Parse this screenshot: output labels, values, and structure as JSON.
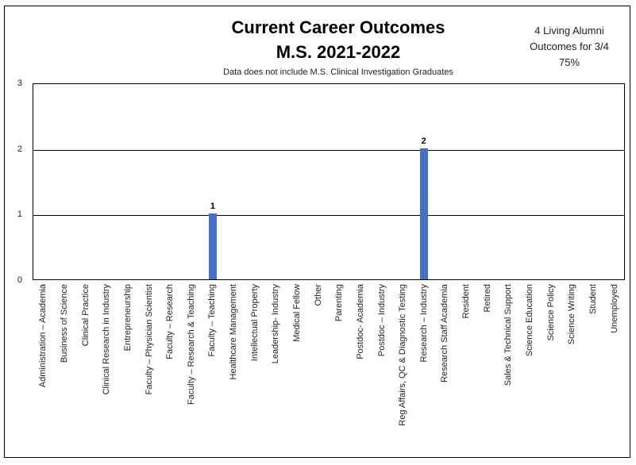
{
  "chart_data": {
    "type": "bar",
    "title_line1": "Current Career Outcomes",
    "title_line2": "M.S. 2021-2022",
    "subtitle": "Data does not include M.S. Clinical Investigation Graduates",
    "annotation_lines": [
      "4 Living Alumni",
      "Outcomes for 3/4",
      "75%"
    ],
    "categories": [
      "Administration – Academia",
      "Business of Science",
      "Clinical Practice",
      "Clinical Research in Industry",
      "Entrepreneurship",
      "Faculty – Physician Scientist",
      "Faculty – Research",
      "Faculty – Research & Teaching",
      "Faculty – Teaching",
      "Healthcare Management",
      "Intellectual Property",
      "Leadership- Industry",
      "Medical Fellow",
      "Other",
      "Parenting",
      "Postdoc- Academia",
      "Postdoc – Industry",
      "Reg Affairs, QC & Diagnostic Testing",
      "Research – Industry",
      "Research Staff Academia",
      "Resident",
      "Retired",
      "Sales & Technical Support",
      "Science Education",
      "Science Policy",
      "Science Writing",
      "Student",
      "Unemployed"
    ],
    "values": [
      0,
      0,
      0,
      0,
      0,
      0,
      0,
      0,
      1,
      0,
      0,
      0,
      0,
      0,
      0,
      0,
      0,
      0,
      2,
      0,
      0,
      0,
      0,
      0,
      0,
      0,
      0,
      0
    ],
    "xlabel": "",
    "ylabel": "",
    "ylim": [
      0,
      3
    ],
    "yticks": [
      0,
      1,
      2,
      3
    ],
    "bar_color": "#4472C4",
    "grid": true,
    "legend_position": "none"
  }
}
